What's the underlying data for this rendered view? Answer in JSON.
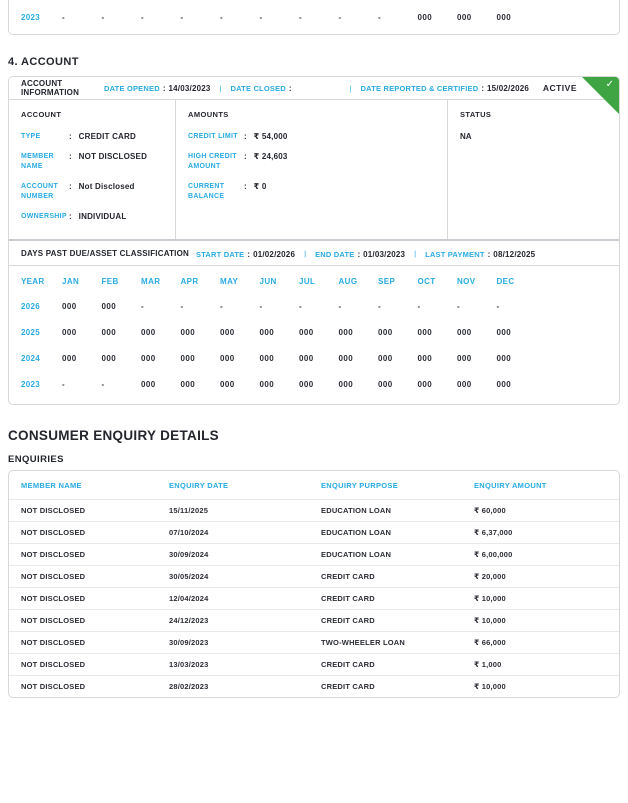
{
  "ui": {
    "pipe": "|"
  },
  "colors": {
    "accent": "#29ABE2",
    "dark": "#24262E",
    "green": "#3FA543",
    "border": "#D8D8D8"
  },
  "previous_account_tail": {
    "year": "2023",
    "values": [
      "-",
      "-",
      "-",
      "-",
      "-",
      "-",
      "-",
      "-",
      "-",
      "000",
      "000",
      "000"
    ]
  },
  "account_section": {
    "title": "4. ACCOUNT",
    "info_header": {
      "title": "ACCOUNT INFORMATION",
      "date_opened_label": "DATE OPENED",
      "date_opened": "14/03/2023",
      "date_closed_label": "DATE CLOSED",
      "date_closed": "",
      "date_reported_label": "DATE REPORTED & CERTIFIED",
      "date_reported": "15/02/2026",
      "status_badge": "ACTIVE",
      "status_check_icon": "✓"
    },
    "columns": {
      "account": {
        "title": "ACCOUNT",
        "fields": [
          {
            "label": "TYPE",
            "value": "CREDIT CARD"
          },
          {
            "label": "MEMBER NAME",
            "value": "NOT DISCLOSED"
          },
          {
            "label": "ACCOUNT NUMBER",
            "value": "Not Disclosed"
          },
          {
            "label": "OWNERSHIP",
            "value": "INDIVIDUAL"
          }
        ]
      },
      "amounts": {
        "title": "AMOUNTS",
        "fields": [
          {
            "label": "CREDIT LIMIT",
            "value": "₹ 54,000"
          },
          {
            "label": "HIGH CREDIT AMOUNT",
            "value": "₹ 24,603"
          },
          {
            "label": "CURRENT BALANCE",
            "value": "₹ 0"
          }
        ]
      },
      "status": {
        "title": "STATUS",
        "value": "NA"
      }
    },
    "dpd": {
      "title": "DAYS PAST DUE/ASSET CLASSIFICATION",
      "start_date_label": "START DATE",
      "start_date": "01/02/2026",
      "end_date_label": "END DATE",
      "end_date": "01/03/2023",
      "last_payment_label": "LAST PAYMENT",
      "last_payment": "08/12/2025",
      "columns": [
        "YEAR",
        "JAN",
        "FEB",
        "MAR",
        "APR",
        "MAY",
        "JUN",
        "JUL",
        "AUG",
        "SEP",
        "OCT",
        "NOV",
        "DEC"
      ],
      "rows": [
        {
          "year": "2026",
          "values": [
            "000",
            "000",
            "-",
            "-",
            "-",
            "-",
            "-",
            "-",
            "-",
            "-",
            "-",
            "-"
          ]
        },
        {
          "year": "2025",
          "values": [
            "000",
            "000",
            "000",
            "000",
            "000",
            "000",
            "000",
            "000",
            "000",
            "000",
            "000",
            "000"
          ]
        },
        {
          "year": "2024",
          "values": [
            "000",
            "000",
            "000",
            "000",
            "000",
            "000",
            "000",
            "000",
            "000",
            "000",
            "000",
            "000"
          ]
        },
        {
          "year": "2023",
          "values": [
            "-",
            "-",
            "000",
            "000",
            "000",
            "000",
            "000",
            "000",
            "000",
            "000",
            "000",
            "000"
          ]
        }
      ]
    }
  },
  "enquiry_section": {
    "title": "CONSUMER ENQUIRY DETAILS",
    "subtitle": "ENQUIRIES",
    "columns": [
      "MEMBER NAME",
      "ENQUIRY DATE",
      "ENQUIRY PURPOSE",
      "ENQUIRY AMOUNT"
    ],
    "rows": [
      {
        "member": "NOT DISCLOSED",
        "date": "15/11/2025",
        "purpose": "EDUCATION LOAN",
        "amount": "₹ 60,000"
      },
      {
        "member": "NOT DISCLOSED",
        "date": "07/10/2024",
        "purpose": "EDUCATION LOAN",
        "amount": "₹ 6,37,000"
      },
      {
        "member": "NOT DISCLOSED",
        "date": "30/09/2024",
        "purpose": "EDUCATION LOAN",
        "amount": "₹ 6,00,000"
      },
      {
        "member": "NOT DISCLOSED",
        "date": "30/05/2024",
        "purpose": "CREDIT CARD",
        "amount": "₹ 20,000"
      },
      {
        "member": "NOT DISCLOSED",
        "date": "12/04/2024",
        "purpose": "CREDIT CARD",
        "amount": "₹ 10,000"
      },
      {
        "member": "NOT DISCLOSED",
        "date": "24/12/2023",
        "purpose": "CREDIT CARD",
        "amount": "₹ 10,000"
      },
      {
        "member": "NOT DISCLOSED",
        "date": "30/09/2023",
        "purpose": "TWO-WHEELER LOAN",
        "amount": "₹ 66,000"
      },
      {
        "member": "NOT DISCLOSED",
        "date": "13/03/2023",
        "purpose": "CREDIT CARD",
        "amount": "₹ 1,000"
      },
      {
        "member": "NOT DISCLOSED",
        "date": "28/02/2023",
        "purpose": "CREDIT CARD",
        "amount": "₹ 10,000"
      }
    ]
  }
}
